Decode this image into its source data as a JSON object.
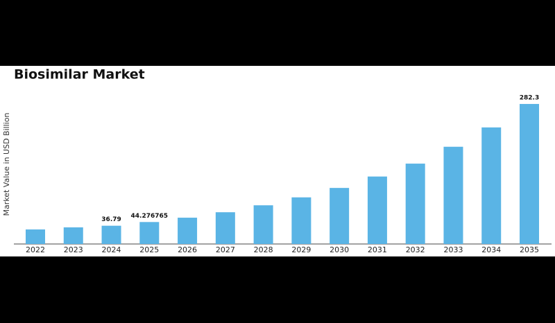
{
  "chart_data": {
    "type": "bar",
    "title": "Biosimilar Market",
    "y_label": "Market Value in USD Billion",
    "categories": [
      "2022",
      "2023",
      "2024",
      "2025",
      "2026",
      "2027",
      "2028",
      "2029",
      "2030",
      "2031",
      "2032",
      "2033",
      "2034",
      "2035"
    ],
    "values": [
      29.3,
      33.5,
      36.79,
      44.276765,
      53,
      64,
      78,
      94,
      113,
      136,
      162,
      196,
      235,
      282.3
    ],
    "value_labels": [
      null,
      null,
      "36.79",
      "44.276765",
      null,
      null,
      null,
      null,
      null,
      null,
      null,
      null,
      null,
      "282.3"
    ],
    "color": "#5ab4e5",
    "ylim": [
      0,
      300
    ]
  }
}
